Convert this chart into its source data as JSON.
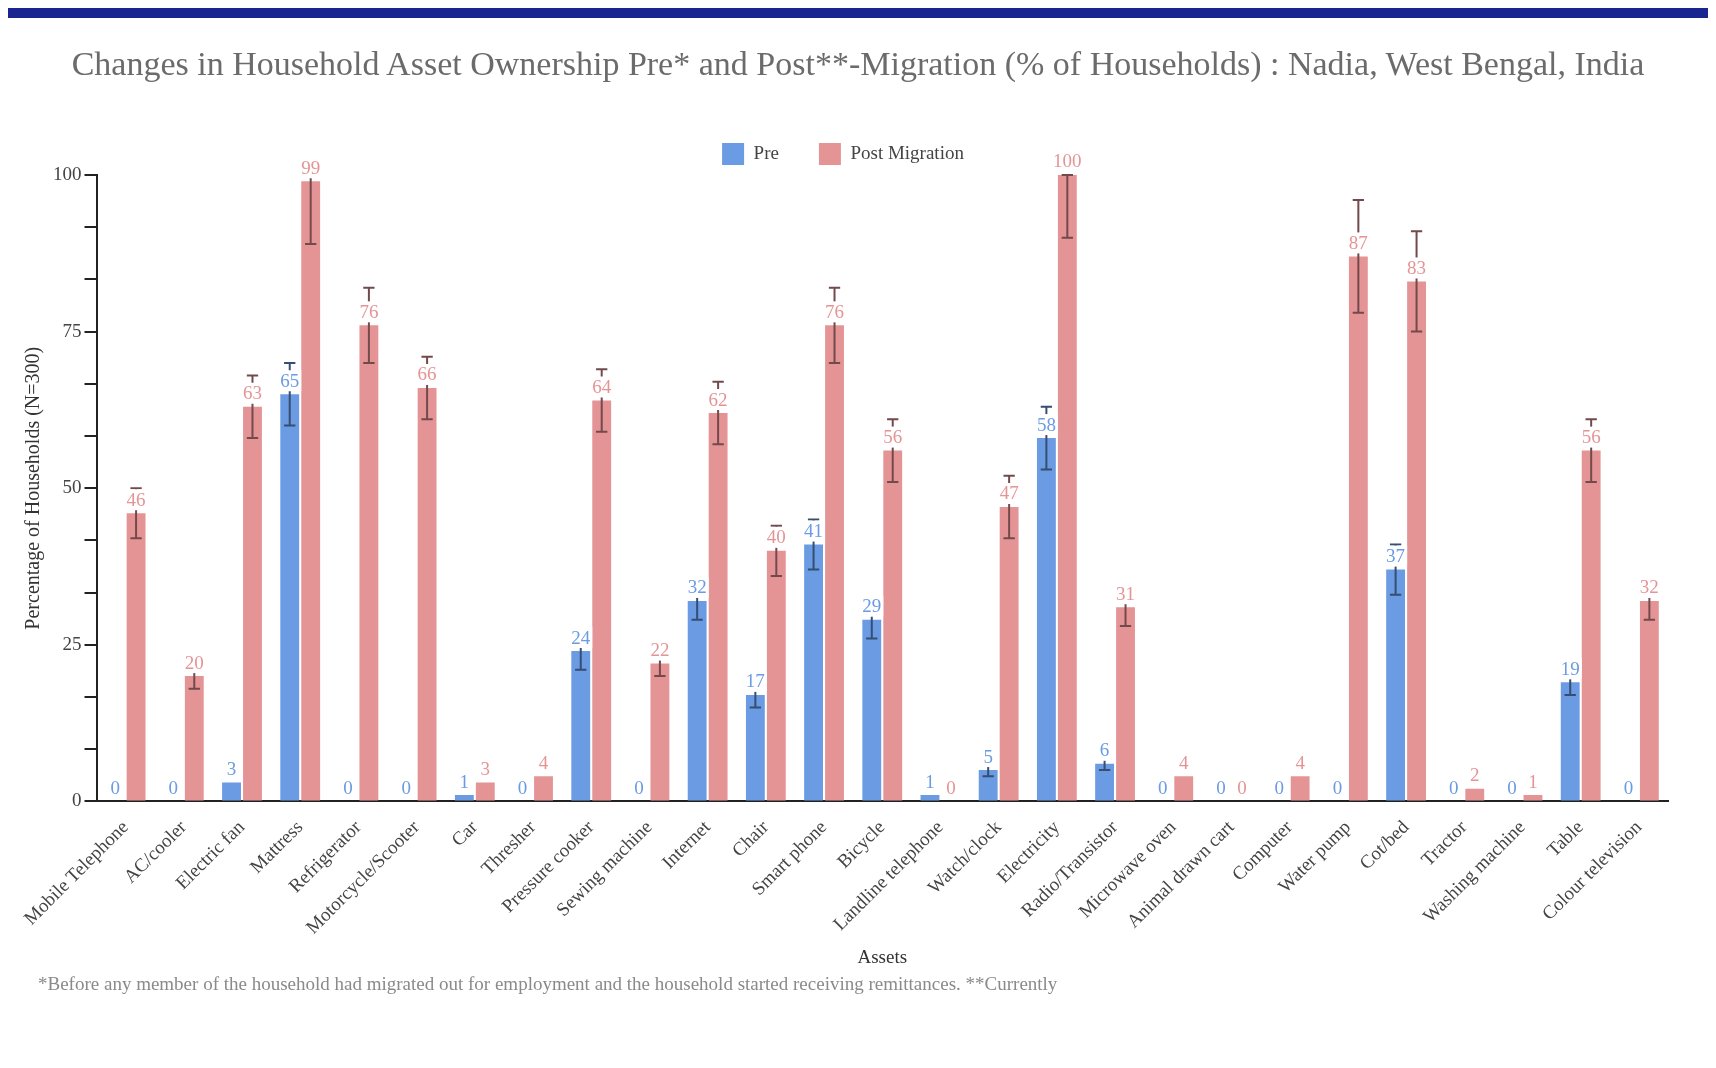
{
  "chart_data": {
    "type": "bar",
    "title": "Changes in Household Asset Ownership Pre* and Post**-Migration (% of Households) : Nadia, West Bengal, India",
    "xlabel": "Assets",
    "ylabel": "Percentage of Households (N=300)",
    "categories": [
      "Mobile Telephone",
      "AC/cooler",
      "Electric fan",
      "Mattress",
      "Refrigerator",
      "Motorcycle/Scooter",
      "Car",
      "Thresher",
      "Pressure cooker",
      "Sewing machine",
      "Internet",
      "Chair",
      "Smart phone",
      "Bicycle",
      "Landline telephone",
      "Watch/clock",
      "Electricity",
      "Radio/Transistor",
      "Microwave oven",
      "Animal drawn cart",
      "Computer",
      "Water pump",
      "Cot/bed",
      "Tractor",
      "Washing machine",
      "Table",
      "Colour television"
    ],
    "series": [
      {
        "name": "Pre",
        "color": "#6a9be3",
        "values": [
          0,
          0,
          3,
          65,
          0,
          0,
          1,
          0,
          24,
          0,
          32,
          17,
          41,
          29,
          1,
          5,
          58,
          6,
          0,
          0,
          0,
          0,
          37,
          0,
          0,
          19,
          0
        ],
        "errors": [
          null,
          null,
          null,
          5,
          null,
          null,
          null,
          null,
          3,
          null,
          3,
          2,
          4,
          3,
          null,
          1,
          5,
          1,
          null,
          null,
          null,
          null,
          4,
          null,
          null,
          2,
          null
        ]
      },
      {
        "name": "Post Migration",
        "color": "#e59496",
        "values": [
          46,
          20,
          63,
          99,
          76,
          66,
          3,
          4,
          64,
          22,
          62,
          40,
          76,
          56,
          0,
          47,
          100,
          31,
          4,
          0,
          4,
          87,
          83,
          2,
          1,
          56,
          32
        ],
        "errors": [
          4,
          2,
          5,
          [
            89,
            100
          ],
          6,
          5,
          null,
          null,
          5,
          2,
          5,
          4,
          6,
          5,
          null,
          5,
          [
            90,
            100
          ],
          3,
          null,
          null,
          null,
          9,
          8,
          null,
          null,
          5,
          3
        ]
      }
    ],
    "ylim": [
      0,
      100
    ],
    "yticks": [
      0,
      {
        "value": 8.33,
        "label": null
      },
      {
        "value": 16.67,
        "label": null
      },
      25,
      {
        "value": 33.33,
        "label": null
      },
      {
        "value": 41.67,
        "label": null
      },
      50,
      {
        "value": 58.33,
        "label": null
      },
      {
        "value": 66.67,
        "label": null
      },
      75,
      {
        "value": 83.33,
        "label": null
      },
      {
        "value": 91.67,
        "label": null
      },
      100
    ],
    "grid": false,
    "legend": "top",
    "data_labels": true,
    "annotations": [
      "*Before any member of the household had migrated out for employment and the household started receiving remittances. **Currently"
    ]
  }
}
